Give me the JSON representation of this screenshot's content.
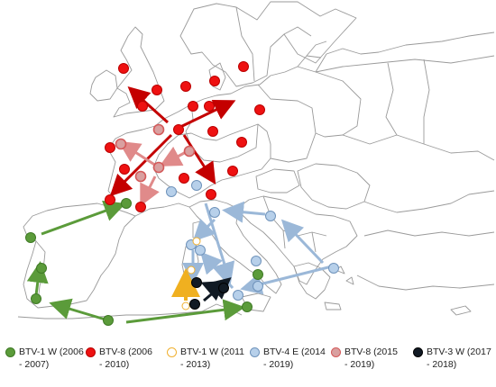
{
  "map": {
    "background": "#ffffff",
    "border_color": "#9a9a9a"
  },
  "series": [
    {
      "id": "btv1w_0607",
      "line1": "BTV-1 W  (2006",
      "line2": "- 2007)",
      "fill": "#5b9b3a",
      "stroke": "#3f7a25"
    },
    {
      "id": "btv8_0610",
      "line1": "BTV-8 (2006",
      "line2": "- 2010)",
      "fill": "#ee1111",
      "stroke": "#bb0000"
    },
    {
      "id": "btv1w_1113",
      "line1": "BTV-1 W  (2011",
      "line2": "- 2013)",
      "fill": "#ffffff",
      "stroke": "#f0b030"
    },
    {
      "id": "btv4e_1419",
      "line1": "BTV-4 E (2014",
      "line2": "- 2019)",
      "fill": "#b7d0ea",
      "stroke": "#6f93bb"
    },
    {
      "id": "btv8_1519",
      "line1": "BTV-8 (2015",
      "line2": "- 2019)",
      "fill": "#d9a0a0",
      "stroke": "#d45a5a"
    },
    {
      "id": "btv3w_1718",
      "line1": "BTV-3 W (2017",
      "line2": "- 2018)",
      "fill": "#111a24",
      "stroke": "#000000"
    }
  ],
  "legend": {
    "items": [
      {
        "line1": "BTV-1 W  (2006",
        "line2": "- 2007)"
      },
      {
        "line1": "BTV-8 (2006",
        "line2": "- 2010)"
      },
      {
        "line1": "BTV-1 W  (2011",
        "line2": "- 2013)"
      },
      {
        "line1": "BTV-4 E (2014",
        "line2": "- 2019)"
      },
      {
        "line1": "BTV-8 (2015",
        "line2": "- 2019)"
      },
      {
        "line1": "BTV-3 W (2017",
        "line2": "- 2018)"
      }
    ]
  }
}
